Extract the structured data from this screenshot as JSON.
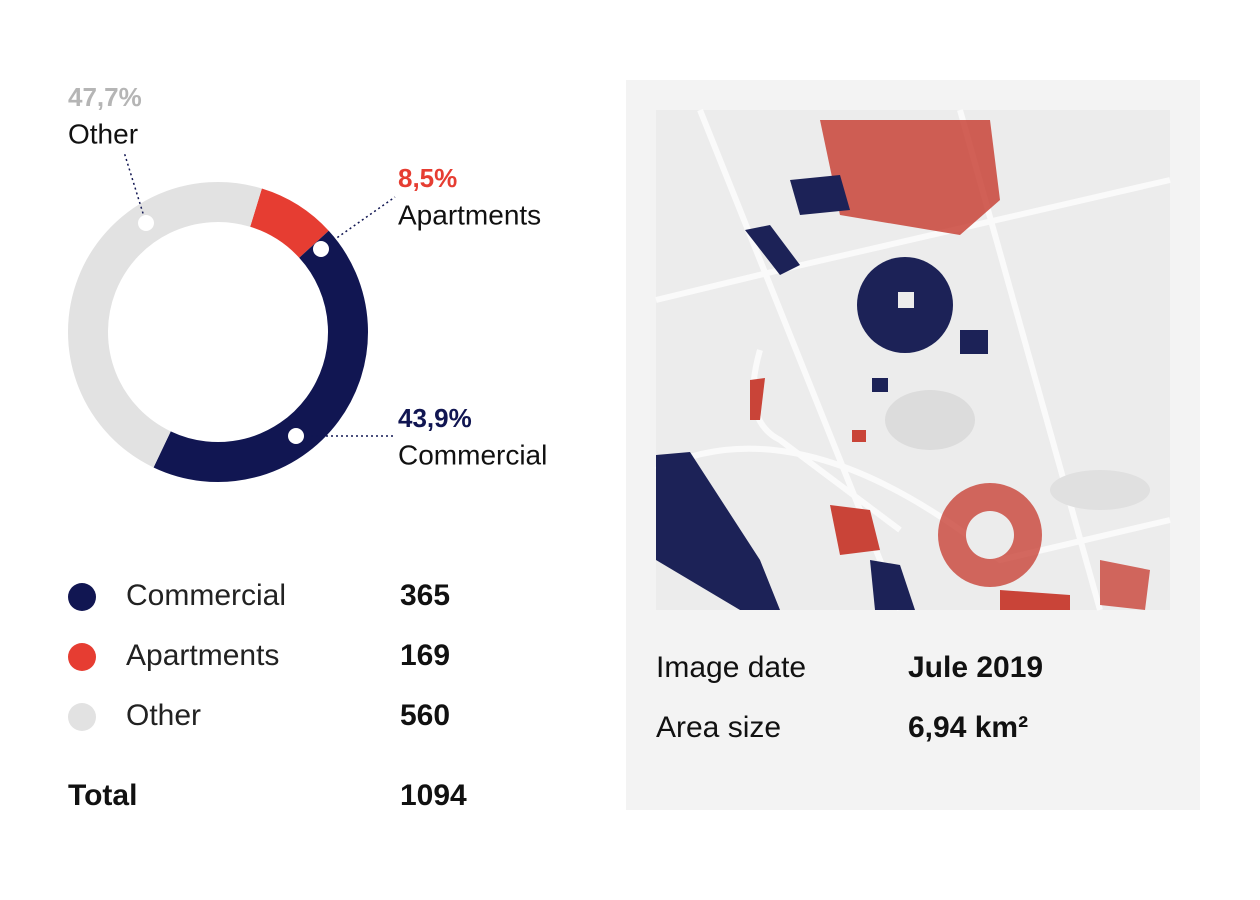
{
  "chart_data": {
    "type": "donut",
    "categories": [
      "Commercial",
      "Apartments",
      "Other"
    ],
    "values": [
      43.9,
      8.5,
      47.7
    ],
    "value_labels": [
      "43,9%",
      "8,5%",
      "47,7%"
    ],
    "colors": [
      "#111652",
      "#e63d32",
      "#e2e2e2"
    ],
    "label_colors": [
      "#111652",
      "#e63d32",
      "#b5b5b5"
    ],
    "counts": [
      365,
      169,
      560
    ],
    "total_label": "Total",
    "total": 1094
  },
  "details": {
    "rows": [
      [
        "Image date",
        "Jule 2019"
      ],
      [
        "Area size",
        "6,94 km²"
      ]
    ]
  }
}
